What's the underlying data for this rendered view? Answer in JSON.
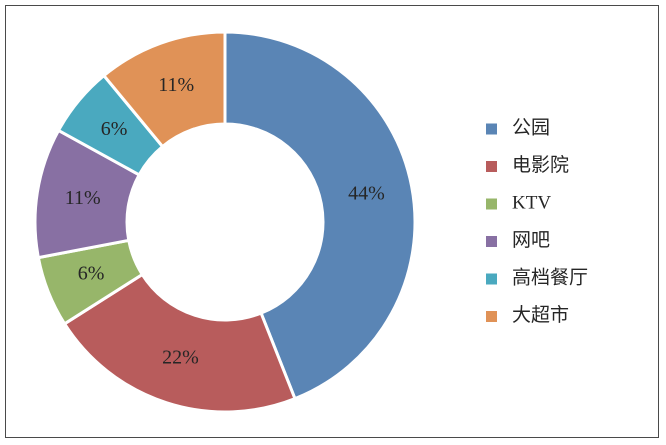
{
  "chart_data": {
    "type": "pie",
    "donut": true,
    "title": "",
    "legend_position": "right",
    "slices": [
      {
        "label": "公园",
        "value": 44,
        "display": "44%",
        "color": "#5a85b5"
      },
      {
        "label": "电影院",
        "value": 22,
        "display": "22%",
        "color": "#b85c5c"
      },
      {
        "label": "KTV",
        "value": 6,
        "display": "6%",
        "color": "#97b66a"
      },
      {
        "label": "网吧",
        "value": 11,
        "display": "11%",
        "color": "#8870a3"
      },
      {
        "label": "高档餐厅",
        "value": 6,
        "display": "6%",
        "color": "#4aa9bf"
      },
      {
        "label": "大超市",
        "value": 11,
        "display": "11%",
        "color": "#e09257"
      }
    ]
  }
}
